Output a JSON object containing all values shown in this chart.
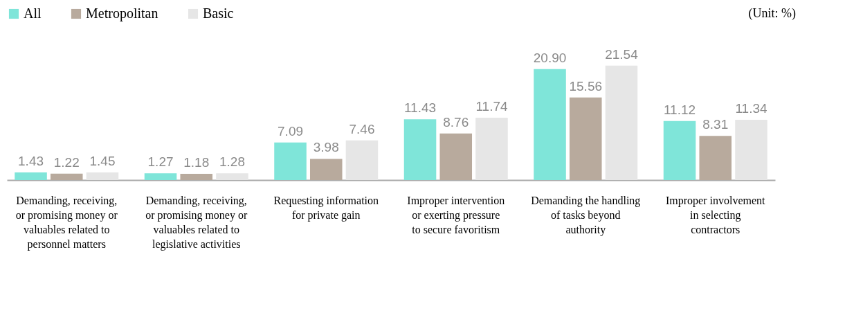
{
  "chart_data": {
    "type": "bar",
    "categories": [
      "Demanding, receiving, or promising money or valuables related to personnel matters",
      "Demanding, receiving, or promising money or valuables related to legislative activities",
      "Requesting information for private gain",
      "Improper intervention or exerting pressure to secure favoritism",
      "Demanding the handling of tasks beyond authority",
      "Improper involvement in selecting contractors"
    ],
    "series": [
      {
        "name": "All",
        "color": "#7fe5d9",
        "values": [
          1.43,
          1.27,
          7.09,
          11.43,
          20.9,
          11.12
        ],
        "value_labels": [
          "1.43",
          "1.27",
          "7.09",
          "11.43",
          "20.90",
          "11.12"
        ]
      },
      {
        "name": "Metropolitan",
        "color": "#b8aa9d",
        "values": [
          1.22,
          1.18,
          3.98,
          8.76,
          15.56,
          8.31
        ],
        "value_labels": [
          "1.22",
          "1.18",
          "3.98",
          "8.76",
          "15.56",
          "8.31"
        ]
      },
      {
        "name": "Basic",
        "color": "#e6e6e6",
        "values": [
          1.45,
          1.28,
          7.46,
          11.74,
          21.54,
          11.34
        ],
        "value_labels": [
          "1.45",
          "1.28",
          "7.46",
          "11.74",
          "21.54",
          "11.34"
        ]
      }
    ],
    "legend": "top",
    "annotations": [
      "(Unit: %)"
    ]
  }
}
